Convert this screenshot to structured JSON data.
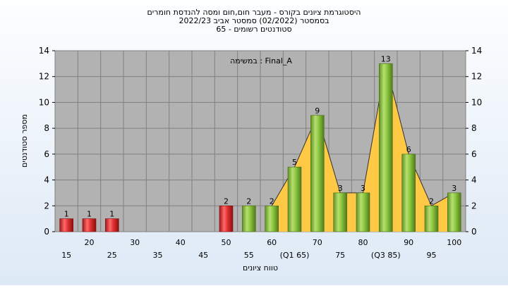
{
  "chart_data": {
    "type": "bar",
    "title_lines": [
      "היסטוגרמת ציונים בקורס - מעבר חום,חום ומסה להנדסת חומרים",
      "בסמסטר  (02/2022)  סמסטר אביב 2022/23",
      "סטודנטים רשומים - 65"
    ],
    "legend_label": "במשימה : Final_A",
    "xlabel": "טווח ציונים",
    "ylabel": "מספר סטודנטים",
    "ylim": [
      0,
      14
    ],
    "y_ticks": [
      0,
      2,
      4,
      6,
      8,
      10,
      12,
      14
    ],
    "grid": true,
    "categories": [
      15,
      20,
      25,
      30,
      35,
      40,
      45,
      50,
      55,
      60,
      65,
      70,
      75,
      80,
      85,
      90,
      95,
      100
    ],
    "x_tick_labels": [
      "15",
      "20",
      "25",
      "30",
      "35",
      "40",
      "45",
      "50",
      "55",
      "60",
      "(Q1 65)",
      "70",
      "75",
      "80",
      "(Q3 85)",
      "90",
      "95",
      "100"
    ],
    "values": [
      1,
      1,
      1,
      0,
      0,
      0,
      0,
      2,
      2,
      2,
      5,
      9,
      3,
      3,
      13,
      6,
      2,
      3
    ],
    "value_labels": [
      "1",
      "1",
      "1",
      "",
      "",
      "",
      "",
      "2",
      "2",
      "2",
      "5",
      "9",
      "3",
      "3",
      "13",
      "6",
      "2",
      "3"
    ],
    "fail_threshold": 55,
    "colors": {
      "fail_bar": "#e03030",
      "pass_bar": "#8cc63f",
      "area": "#ffc845",
      "plot_bg": "#b2b2b2",
      "grid": "#808080",
      "line": "#303030"
    }
  }
}
